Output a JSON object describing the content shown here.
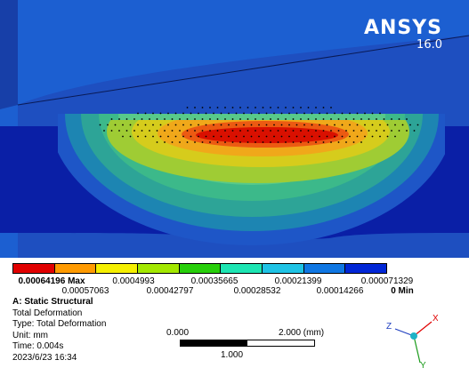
{
  "brand": {
    "name": "ANSYS",
    "version": "16.0"
  },
  "legend": {
    "colors": [
      "#e10000",
      "#ff9a00",
      "#f5ef00",
      "#a3e800",
      "#27cf0a",
      "#1de5b3",
      "#1fc3e5",
      "#1077e3",
      "#0026d6"
    ],
    "top_labels": [
      "0.00064196 Max",
      "0.0004993",
      "0.00035665",
      "0.00021399",
      "0.000071329"
    ],
    "bottom_labels": [
      "0.00057063",
      "0.00042797",
      "0.00028532",
      "0.00014266",
      "0 Min"
    ]
  },
  "info": {
    "title": "A: Static Structural",
    "result": "Total Deformation",
    "type": "Type: Total Deformation",
    "unit": "Unit: mm",
    "time": "Time: 0.004s",
    "date": "2023/6/23 16:34"
  },
  "scale": {
    "left": "0.000",
    "right": "2.000 (mm)",
    "mid": "1.000"
  },
  "triad": {
    "x": "X",
    "y": "Y",
    "z": "Z"
  }
}
